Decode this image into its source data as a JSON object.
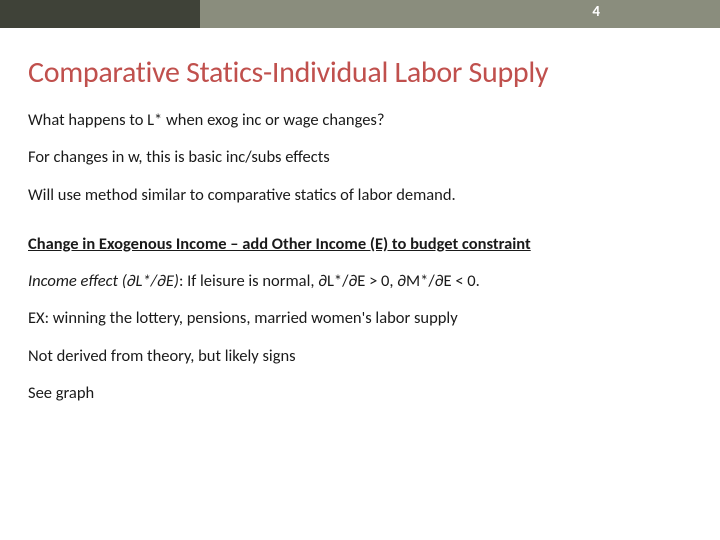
{
  "meta": {
    "page_number": "4",
    "topbar_color": "#8a8d7d",
    "topbar_accent_color": "#3f4238",
    "title_color": "#c0504d",
    "text_color": "#1a1a1a",
    "background_color": "#ffffff",
    "title_fontsize": 30,
    "body_fontsize": 16.5
  },
  "title": "Comparative Statics-Individual Labor Supply",
  "lines": {
    "l1": "What happens to L* when exog inc or wage changes?",
    "l2": "For changes in w, this is basic inc/subs effects",
    "l3": "Will use method similar to comparative statics of labor demand.",
    "l4": "Change in Exogenous Income – add Other Income (E) to budget constraint",
    "l5_em": "Income effect (∂L*/∂E)",
    "l5_rest": ": If leisure is normal, ∂L*/∂E > 0, ∂M*/∂E < 0.",
    "l6": "EX:  winning the lottery, pensions, married women's labor supply",
    "l7": "Not derived from theory, but likely signs",
    "l8": "See graph"
  }
}
